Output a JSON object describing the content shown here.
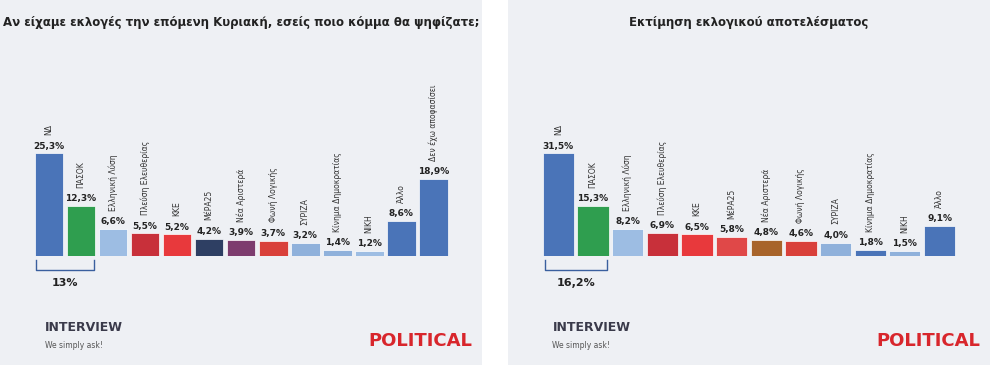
{
  "chart_data": [
    {
      "type": "bar",
      "title": "Αν είχαμε εκλογές την επόμενη Κυριακή, εσείς ποιο κόμμα θα ψηφίζατε;",
      "categories": [
        "ΝΔ",
        "ΠΑΣΟΚ",
        "Ελληνική Λύση",
        "Πλεύση Ελευθερίας",
        "ΚΚΕ",
        "ΜέΡΑ25",
        "Νέα Αριστερά",
        "Φωνή Λογικής",
        "ΣΥΡΙΖΑ",
        "Κίνημα Δημοκρατίας",
        "ΝΙΚΗ",
        "Άλλο",
        "Δεν έχω αποφασίσει"
      ],
      "values": [
        25.3,
        12.3,
        6.6,
        5.5,
        5.2,
        4.2,
        3.9,
        3.7,
        3.2,
        1.4,
        1.2,
        8.6,
        18.9
      ],
      "value_labels": [
        "25,3%",
        "12,3%",
        "6,6%",
        "5,5%",
        "5,2%",
        "4,2%",
        "3,9%",
        "3,7%",
        "3,2%",
        "1,4%",
        "1,2%",
        "8,6%",
        "18,9%"
      ],
      "colors": [
        "#4a74b8",
        "#2f9e4f",
        "#9dbde3",
        "#c8303a",
        "#e8393c",
        "#2e3f63",
        "#7d3c6e",
        "#d9403a",
        "#8fb1db",
        "#8fb1db",
        "#9dbde3",
        "#4a74b8",
        "#4a74b8"
      ],
      "data_labels": true,
      "tick_labels": false,
      "annotations": [
        {
          "text": "13%",
          "categories": [
            "ΝΔ",
            "ΠΑΣΟΚ"
          ]
        }
      ]
    },
    {
      "type": "bar",
      "title": "Εκτίμηση εκλογικού αποτελέσματος",
      "categories": [
        "ΝΔ",
        "ΠΑΣΟΚ",
        "Ελληνική Λύση",
        "Πλεύση Ελευθερίας",
        "ΚΚΕ",
        "ΜέΡΑ25",
        "Νέα Αριστερά",
        "Φωνή Λογικής",
        "ΣΥΡΙΖΑ",
        "Κίνημα Δημοκρατίας",
        "ΝΙΚΗ",
        "Άλλο"
      ],
      "values": [
        31.5,
        15.3,
        8.2,
        6.9,
        6.5,
        5.8,
        4.8,
        4.6,
        4.0,
        1.8,
        1.5,
        9.1
      ],
      "value_labels": [
        "31,5%",
        "15,3%",
        "8,2%",
        "6,9%",
        "6,5%",
        "5,8%",
        "4,8%",
        "4,6%",
        "4,0%",
        "1,8%",
        "1,5%",
        "9,1%"
      ],
      "colors": [
        "#4a74b8",
        "#2f9e4f",
        "#9dbde3",
        "#c8303a",
        "#e8393c",
        "#e04848",
        "#a8642a",
        "#d9403a",
        "#8fb1db",
        "#4a74b8",
        "#8fb1db",
        "#4a74b8"
      ],
      "data_labels": true,
      "tick_labels": false,
      "annotations": [
        {
          "text": "16,2%",
          "categories": [
            "ΝΔ",
            "ΠΑΣΟΚ"
          ]
        }
      ]
    }
  ],
  "footer": {
    "left": [
      "INTERVIEW",
      "We simply ask!"
    ],
    "right": "POLITICAL"
  }
}
